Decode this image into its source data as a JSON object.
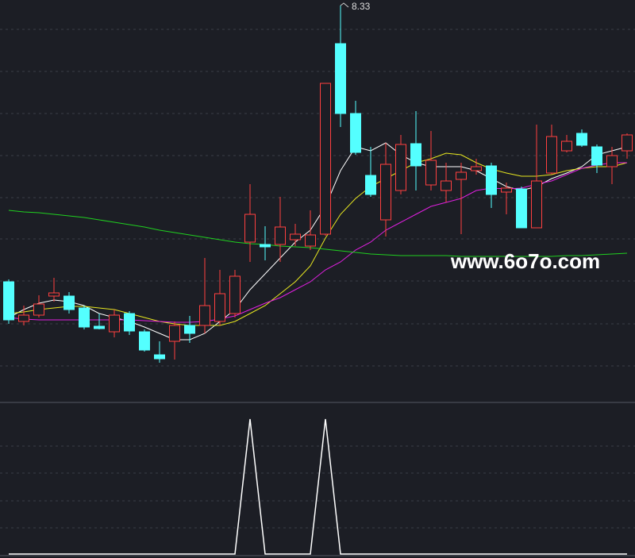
{
  "chart_data": [
    {
      "type": "candlestick",
      "ylim": [
        3.35,
        8.4
      ],
      "up_color": "#ff4040",
      "down_color": "#54ffff",
      "open": [
        4.85,
        4.35,
        4.43,
        4.67,
        4.67,
        4.52,
        4.29,
        4.22,
        4.45,
        4.22,
        3.93,
        4.1,
        4.3,
        4.3,
        4.35,
        4.45,
        5.35,
        5.32,
        5.32,
        5.38,
        5.3,
        5.45,
        7.85,
        6.97,
        6.19,
        5.63,
        6.0,
        6.59,
        6.07,
        6.0,
        6.14,
        6.25,
        6.31,
        5.98,
        6.02,
        5.53,
        6.22,
        6.5,
        6.72,
        6.55,
        6.3,
        6.5
      ],
      "high": [
        4.88,
        4.55,
        4.68,
        4.9,
        4.72,
        4.55,
        4.45,
        4.5,
        4.48,
        4.25,
        4.1,
        4.35,
        4.42,
        5.15,
        5.0,
        5.0,
        6.08,
        5.55,
        5.92,
        5.58,
        5.75,
        7.35,
        8.33,
        7.13,
        6.55,
        6.6,
        6.7,
        7.0,
        6.75,
        6.35,
        6.35,
        6.4,
        6.35,
        6.1,
        6.05,
        6.83,
        6.83,
        6.7,
        6.77,
        6.58,
        6.55,
        6.72
      ],
      "low": [
        4.32,
        4.3,
        4.4,
        4.6,
        4.45,
        4.25,
        4.25,
        4.15,
        4.18,
        3.97,
        3.83,
        3.87,
        4.08,
        4.2,
        4.3,
        4.4,
        5.1,
        5.12,
        5.1,
        5.3,
        5.25,
        5.43,
        6.8,
        6.45,
        5.92,
        5.42,
        5.95,
        6.0,
        6.0,
        5.85,
        5.45,
        6.2,
        5.78,
        5.7,
        5.53,
        5.53,
        6.2,
        6.48,
        6.55,
        6.22,
        6.08,
        6.4
      ],
      "close": [
        4.37,
        4.43,
        4.57,
        4.71,
        4.5,
        4.28,
        4.26,
        4.43,
        4.23,
        3.99,
        3.88,
        4.3,
        4.2,
        4.55,
        4.7,
        4.92,
        5.7,
        5.29,
        5.54,
        5.45,
        5.44,
        7.35,
        6.97,
        6.48,
        5.95,
        6.33,
        6.58,
        6.31,
        6.38,
        6.12,
        6.23,
        6.3,
        5.95,
        6.03,
        5.53,
        6.12,
        6.68,
        6.62,
        6.57,
        6.32,
        6.44,
        6.7
      ],
      "max_label": "8.33",
      "watermark": "www.6o7o.com",
      "series": [
        {
          "color": "#ffffff",
          "values": [
            4.4,
            4.5,
            4.58,
            4.62,
            4.6,
            4.55,
            4.45,
            4.4,
            4.35,
            4.28,
            4.2,
            4.12,
            4.12,
            4.2,
            4.35,
            4.5,
            4.75,
            4.95,
            5.15,
            5.35,
            5.5,
            5.8,
            6.25,
            6.55,
            6.5,
            6.6,
            6.45,
            6.35,
            6.3,
            6.3,
            6.3,
            6.25,
            6.15,
            6.05,
            6.0,
            6.05,
            6.15,
            6.22,
            6.3,
            6.45,
            6.5,
            6.55
          ]
        },
        {
          "color": "#e8e820",
          "values": [
            4.45,
            4.47,
            4.5,
            4.52,
            4.54,
            4.54,
            4.52,
            4.5,
            4.45,
            4.4,
            4.35,
            4.32,
            4.3,
            4.3,
            4.3,
            4.35,
            4.45,
            4.55,
            4.7,
            4.85,
            5.05,
            5.4,
            5.7,
            5.9,
            6.05,
            6.15,
            6.25,
            6.35,
            6.4,
            6.47,
            6.45,
            6.35,
            6.27,
            6.22,
            6.18,
            6.18,
            6.2,
            6.25,
            6.28,
            6.3,
            6.3,
            6.35
          ]
        },
        {
          "color": "#e020e0",
          "values": [
            4.4,
            4.38,
            4.37,
            4.37,
            4.37,
            4.37,
            4.37,
            4.37,
            4.37,
            4.36,
            4.35,
            4.34,
            4.34,
            4.35,
            4.38,
            4.42,
            4.5,
            4.58,
            4.65,
            4.75,
            4.85,
            5.0,
            5.1,
            5.25,
            5.35,
            5.5,
            5.6,
            5.7,
            5.8,
            5.85,
            5.9,
            6.0,
            6.03,
            6.02,
            6.03,
            6.08,
            6.12,
            6.2,
            6.28,
            6.32,
            6.35,
            6.35
          ]
        },
        {
          "color": "#20d020",
          "values": [
            5.75,
            5.73,
            5.72,
            5.7,
            5.68,
            5.66,
            5.63,
            5.6,
            5.57,
            5.54,
            5.5,
            5.47,
            5.44,
            5.41,
            5.38,
            5.35,
            5.33,
            5.32,
            5.3,
            5.29,
            5.28,
            5.26,
            5.24,
            5.22,
            5.2,
            5.19,
            5.18,
            5.18,
            5.18,
            5.18,
            5.17,
            5.17,
            5.17,
            5.17,
            5.17,
            5.17,
            5.17,
            5.18,
            5.18,
            5.19,
            5.2,
            5.21
          ]
        }
      ]
    },
    {
      "type": "line",
      "ylim": [
        0,
        1
      ],
      "color": "#ffffff",
      "values": [
        0,
        0,
        0,
        0,
        0,
        0,
        0,
        0,
        0,
        0,
        0,
        0,
        0,
        0,
        0,
        0,
        1,
        0,
        0,
        0,
        0,
        1,
        0,
        0,
        0,
        0,
        0,
        0,
        0,
        0,
        0,
        0,
        0,
        0,
        0,
        0,
        0,
        0,
        0,
        0,
        0,
        0
      ]
    }
  ]
}
